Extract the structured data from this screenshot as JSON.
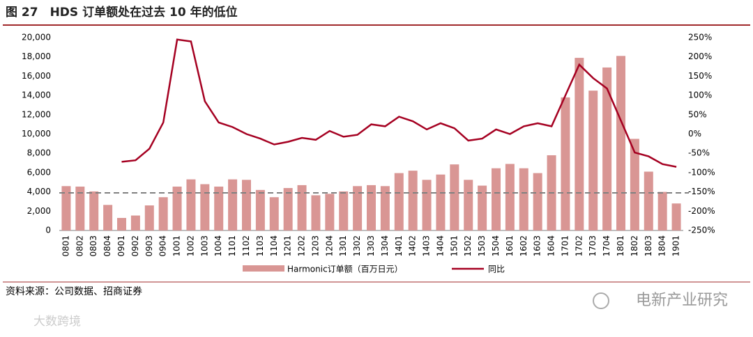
{
  "chart_data": {
    "type": "bar_line",
    "title": "图 27　HDS 订单额处在过去 10 年的低位",
    "categories": [
      "0801",
      "0802",
      "0803",
      "0804",
      "0901",
      "0902",
      "0903",
      "0904",
      "1001",
      "1002",
      "1003",
      "1004",
      "1101",
      "1102",
      "1103",
      "1104",
      "1201",
      "1202",
      "1203",
      "1204",
      "1301",
      "1302",
      "1303",
      "1304",
      "1401",
      "1402",
      "1403",
      "1404",
      "1501",
      "1502",
      "1503",
      "1504",
      "1601",
      "1602",
      "1603",
      "1604",
      "1701",
      "1702",
      "1703",
      "1704",
      "1801",
      "1802",
      "1803",
      "1804",
      "1901"
    ],
    "series": [
      {
        "name": "Harmonic订单额（百万日元）",
        "type": "bar",
        "color": "#d99694",
        "values": [
          4600,
          4550,
          4050,
          2650,
          1300,
          1550,
          2600,
          3450,
          4550,
          5300,
          4800,
          4550,
          5300,
          5250,
          4200,
          3450,
          4400,
          4700,
          3650,
          3800,
          4050,
          4600,
          4700,
          4600,
          5950,
          6200,
          5250,
          5800,
          6850,
          5250,
          4650,
          6450,
          6900,
          6450,
          5950,
          7800,
          13800,
          17900,
          14500,
          16900,
          18100,
          9500,
          6100,
          4000,
          2800
        ]
      },
      {
        "name": "同比",
        "type": "line",
        "axis": "y2",
        "color": "#a50021",
        "values": [
          null,
          null,
          null,
          null,
          -72,
          -68,
          -38,
          30,
          245,
          240,
          85,
          30,
          18,
          0,
          -12,
          -27,
          -20,
          -10,
          -15,
          8,
          -7,
          -2,
          25,
          20,
          45,
          33,
          12,
          28,
          15,
          -17,
          -12,
          12,
          0,
          20,
          28,
          20,
          100,
          180,
          145,
          118,
          35,
          -48,
          -58,
          -78,
          -85
        ]
      }
    ],
    "reference_line": 3900,
    "ylim": [
      0,
      20000
    ],
    "yticks": [
      0,
      {
        "value": 2000,
        "label": "2,000"
      },
      {
        "value": 4000,
        "label": "4,000"
      },
      {
        "value": 6000,
        "label": "6,000"
      },
      {
        "value": 8000,
        "label": "8,000"
      },
      {
        "value": 10000,
        "label": "10,000"
      },
      {
        "value": 12000,
        "label": "12,000"
      },
      {
        "value": 14000,
        "label": "14,000"
      },
      {
        "value": 16000,
        "label": "16,000"
      },
      {
        "value": 18000,
        "label": "18,000"
      },
      {
        "value": 20000,
        "label": "20,000"
      }
    ],
    "y2lim": [
      -250,
      250
    ],
    "y2ticks": [
      {
        "value": -250,
        "label": "-250%"
      },
      {
        "value": -200,
        "label": "-200%"
      },
      {
        "value": -150,
        "label": "-150%"
      },
      {
        "value": -100,
        "label": "-100%"
      },
      {
        "value": -50,
        "label": "-50%"
      },
      {
        "value": 0,
        "label": "0%"
      },
      {
        "value": 50,
        "label": "50%"
      },
      {
        "value": 100,
        "label": "100%"
      },
      {
        "value": 150,
        "label": "150%"
      },
      {
        "value": 200,
        "label": "200%"
      },
      {
        "value": 250,
        "label": "250%"
      }
    ],
    "source": "资料来源：公司数据、招商证券",
    "watermark": "电新产业研究",
    "watermark2": "大数跨境"
  }
}
